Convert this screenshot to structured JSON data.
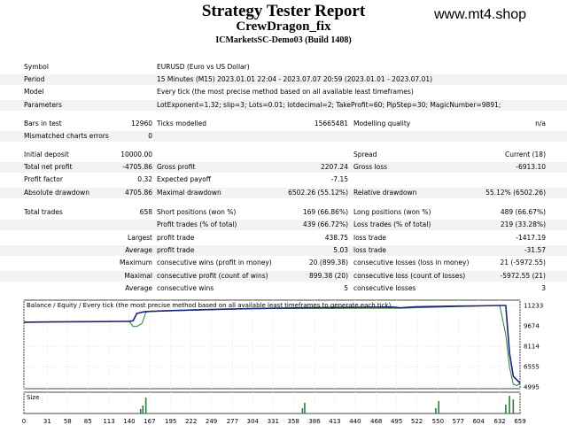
{
  "header": {
    "title": "Strategy Tester Report",
    "expert": "CrewDragon_fix",
    "server": "ICMarketsSC-Demo03 (Build 1408)",
    "watermark": "www.mt4.shop"
  },
  "settings": {
    "symbol_label": "Symbol",
    "symbol_value": "EURUSD (Euro vs US Dollar)",
    "period_label": "Period",
    "period_value": "15 Minutes (M15) 2023.01.01 22:04 - 2023.07.07 20:59 (2023.01.01 - 2023.07.01)",
    "model_label": "Model",
    "model_value": "Every tick (the most precise method based on all available least timeframes)",
    "params_label": "Parameters",
    "params_value": "LotExponent=1.32; slip=3; Lots=0.01; lotdecimal=2; TakeProfit=60; PipStep=30; MagicNumber=9891;"
  },
  "stats": {
    "bars_label": "Bars in test",
    "bars_value": "12960",
    "ticks_label": "Ticks modelled",
    "ticks_value": "15665481",
    "quality_label": "Modelling quality",
    "quality_value": "n/a",
    "mismatch_label": "Mismatched charts errors",
    "mismatch_value": "0",
    "deposit_label": "Initial deposit",
    "deposit_value": "10000.00",
    "spread_label": "Spread",
    "spread_value": "Current (18)",
    "netprofit_label": "Total net profit",
    "netprofit_value": "-4705.86",
    "grossprofit_label": "Gross profit",
    "grossprofit_value": "2207.24",
    "grossloss_label": "Gross loss",
    "grossloss_value": "-6913.10",
    "pf_label": "Profit factor",
    "pf_value": "0.32",
    "payoff_label": "Expected payoff",
    "payoff_value": "-7.15",
    "absdd_label": "Absolute drawdown",
    "absdd_value": "4705.86",
    "maxdd_label": "Maximal drawdown",
    "maxdd_value": "6502.26 (55.12%)",
    "reldd_label": "Relative drawdown",
    "reldd_value": "55.12% (6502.26)",
    "trades_label": "Total trades",
    "trades_value": "658",
    "short_label": "Short positions (won %)",
    "short_value": "169 (66.86%)",
    "long_label": "Long positions (won %)",
    "long_value": "489 (66.67%)",
    "profit_trades_label": "Profit trades (% of total)",
    "profit_trades_value": "439 (66.72%)",
    "loss_trades_label": "Loss trades (% of total)",
    "loss_trades_value": "219 (33.28%)",
    "largest_label": "Largest",
    "largest_profit_label": "profit trade",
    "largest_profit_value": "438.75",
    "largest_loss_label": "loss trade",
    "largest_loss_value": "-1417.19",
    "average_label": "Average",
    "average_profit_label": "profit trade",
    "average_profit_value": "5.03",
    "average_loss_label": "loss trade",
    "average_loss_value": "-31.57",
    "maximum_label": "Maximum",
    "max_consec_wins_label": "consecutive wins (profit in money)",
    "max_consec_wins_value": "20 (899.38)",
    "max_consec_losses_label": "consecutive losses (loss in money)",
    "max_consec_losses_value": "21 (-5972.55)",
    "maximal_label": "Maximal",
    "maximal_profit_label": "consecutive profit (count of wins)",
    "maximal_profit_value": "899.38 (20)",
    "maximal_loss_label": "consecutive loss (count of losses)",
    "maximal_loss_value": "-5972.55 (21)",
    "average2_label": "Average",
    "avg_consec_wins_label": "consecutive wins",
    "avg_consec_wins_value": "5",
    "avg_consec_losses_label": "consecutive losses",
    "avg_consec_losses_value": "3"
  },
  "chart_data": {
    "type": "line",
    "legend_balance": "Balance",
    "legend_sep": " / ",
    "legend_equity": "Equity",
    "legend_rest": " / Every tick (the most precise method based on all available least timeframes to generate each tick)",
    "size_label": "Size",
    "y_ticks": [
      11233,
      9674,
      8114,
      6555,
      4995
    ],
    "x_ticks": [
      0,
      31,
      58,
      85,
      113,
      140,
      167,
      195,
      222,
      249,
      277,
      304,
      331,
      358,
      386,
      413,
      440,
      468,
      495,
      522,
      550,
      577,
      604,
      632,
      659
    ],
    "xlim": [
      0,
      659
    ],
    "ylim": [
      4995,
      11233
    ],
    "balance_color": "#1a237e",
    "equity_color": "#2e7d32",
    "series": [
      {
        "name": "Balance",
        "x": [
          0,
          35,
          85,
          110,
          140,
          145,
          150,
          160,
          167,
          195,
          230,
          260,
          300,
          340,
          380,
          420,
          460,
          490,
          500,
          520,
          560,
          600,
          632,
          640,
          645,
          650,
          659
        ],
        "y": [
          9950,
          9970,
          9990,
          10000,
          10020,
          10060,
          10620,
          10750,
          10780,
          10840,
          10900,
          10940,
          10990,
          11030,
          11060,
          11080,
          11100,
          11110,
          11050,
          11130,
          11170,
          11200,
          11233,
          11233,
          7600,
          5800,
          5294
        ]
      },
      {
        "name": "Equity",
        "x": [
          0,
          140,
          145,
          150,
          157,
          162,
          167,
          300,
          500,
          632,
          640,
          645,
          650,
          655,
          659
        ],
        "y": [
          9950,
          10020,
          9620,
          9630,
          9860,
          10720,
          10780,
          10990,
          11020,
          11233,
          9000,
          6500,
          5200,
          5100,
          5294
        ]
      }
    ],
    "size_bars": [
      {
        "x": 155,
        "v": 0.25
      },
      {
        "x": 158,
        "v": 0.45
      },
      {
        "x": 162,
        "v": 0.9
      },
      {
        "x": 370,
        "v": 0.3
      },
      {
        "x": 373,
        "v": 0.6
      },
      {
        "x": 547,
        "v": 0.3
      },
      {
        "x": 551,
        "v": 0.7
      },
      {
        "x": 640,
        "v": 0.5
      },
      {
        "x": 645,
        "v": 1.0
      },
      {
        "x": 650,
        "v": 0.8
      }
    ]
  }
}
